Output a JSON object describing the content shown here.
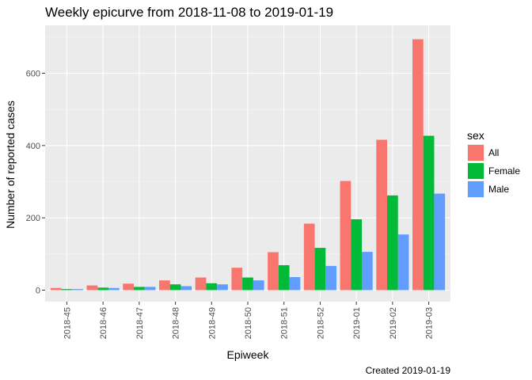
{
  "chart_data": {
    "type": "bar",
    "title": "Weekly epicurve from 2018-11-08 to 2019-01-19",
    "xlabel": "Epiweek",
    "ylabel": "Number of reported cases",
    "caption": "Created 2019-01-19",
    "categories": [
      "2018-45",
      "2018-46",
      "2018-47",
      "2018-48",
      "2018-49",
      "2018-50",
      "2018-51",
      "2018-52",
      "2019-01",
      "2019-02",
      "2019-03"
    ],
    "ylim": [
      0,
      720
    ],
    "yticks": [
      0,
      200,
      400,
      600
    ],
    "legend": {
      "title": "sex",
      "placement": "right"
    },
    "series": [
      {
        "name": "All",
        "color": "#F8766D",
        "values": [
          6,
          13,
          18,
          27,
          35,
          62,
          105,
          184,
          302,
          416,
          694
        ]
      },
      {
        "name": "Female",
        "color": "#00BA38",
        "values": [
          3,
          7,
          9,
          16,
          19,
          35,
          69,
          117,
          196,
          262,
          427
        ]
      },
      {
        "name": "Male",
        "color": "#619CFF",
        "values": [
          3,
          6,
          9,
          11,
          16,
          27,
          36,
          67,
          106,
          154,
          267
        ]
      }
    ],
    "panel_background": "#EBEBEB",
    "grid": true
  }
}
